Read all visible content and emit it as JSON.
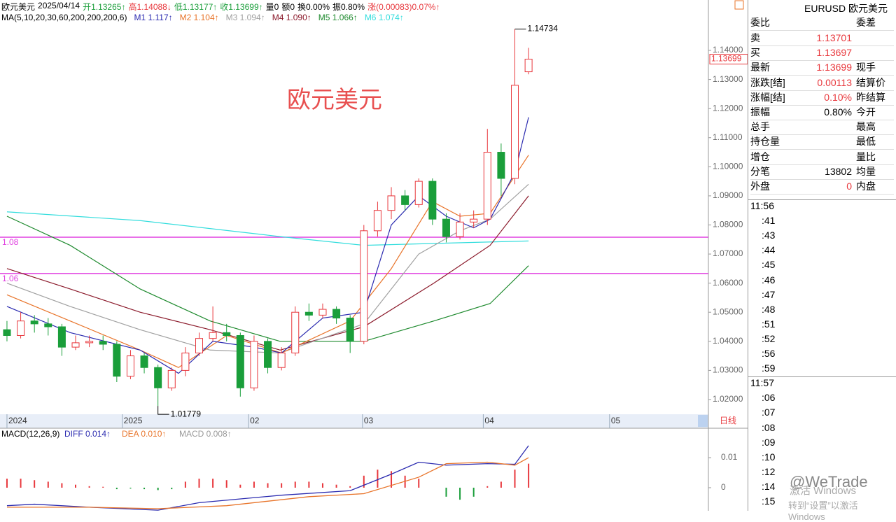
{
  "header": {
    "info": [
      {
        "text": "欧元美元",
        "color": "#000000"
      },
      {
        "text": "2025/04/14",
        "color": "#000000"
      },
      {
        "text": "开1.13265↑",
        "color": "#1a9e3a"
      },
      {
        "text": "高1.14088↓",
        "color": "#e8383d"
      },
      {
        "text": "低1.13177↑",
        "color": "#1a9e3a"
      },
      {
        "text": "收1.13699↑",
        "color": "#1a9e3a"
      },
      {
        "text": "量0",
        "color": "#000000"
      },
      {
        "text": "额0",
        "color": "#000000"
      },
      {
        "text": "换0.00%",
        "color": "#000000"
      },
      {
        "text": "振0.80%",
        "color": "#000000"
      },
      {
        "text": "涨(0.00083)0.07%↑",
        "color": "#e8383d"
      }
    ],
    "ma_label": "MA(5,10,20,30,60,200,200,200,6)",
    "ma_legend": [
      {
        "text": "M1 1.117↑",
        "color": "#2b2bb0"
      },
      {
        "text": "M2 1.104↑",
        "color": "#e8742a"
      },
      {
        "text": "M3 1.094↑",
        "color": "#a0a0a0"
      },
      {
        "text": "M4 1.090↑",
        "color": "#8b1a2b"
      },
      {
        "text": "M5 1.066↑",
        "color": "#1e8a2e"
      },
      {
        "text": "M6 1.074↑",
        "color": "#33dddd"
      }
    ]
  },
  "chart_data": [
    {
      "type": "candlestick",
      "title": "欧元美元",
      "up_color": "#e8383d",
      "down_color": "#1a9e3a",
      "period_label": "日线",
      "candles": [
        [
          1.044,
          1.047,
          1.04,
          1.042
        ],
        [
          1.042,
          1.05,
          1.041,
          1.047
        ],
        [
          1.047,
          1.049,
          1.043,
          1.046
        ],
        [
          1.046,
          1.048,
          1.042,
          1.045
        ],
        [
          1.045,
          1.046,
          1.035,
          1.038
        ],
        [
          1.038,
          1.042,
          1.037,
          1.0395
        ],
        [
          1.0395,
          1.042,
          1.038,
          1.04
        ],
        [
          1.04,
          1.042,
          1.037,
          1.039
        ],
        [
          1.039,
          1.04,
          1.026,
          1.028
        ],
        [
          1.028,
          1.037,
          1.027,
          1.035
        ],
        [
          1.035,
          1.036,
          1.029,
          1.031
        ],
        [
          1.031,
          1.032,
          1.01779,
          1.024
        ],
        [
          1.024,
          1.031,
          1.023,
          1.03
        ],
        [
          1.03,
          1.038,
          1.028,
          1.036
        ],
        [
          1.036,
          1.043,
          1.035,
          1.041
        ],
        [
          1.041,
          1.052,
          1.04,
          1.043
        ],
        [
          1.043,
          1.046,
          1.04,
          1.042
        ],
        [
          1.042,
          1.043,
          1.021,
          1.024
        ],
        [
          1.024,
          1.042,
          1.023,
          1.04
        ],
        [
          1.04,
          1.041,
          1.029,
          1.031
        ],
        [
          1.031,
          1.038,
          1.03,
          1.036
        ],
        [
          1.036,
          1.052,
          1.035,
          1.05
        ],
        [
          1.05,
          1.053,
          1.047,
          1.049
        ],
        [
          1.049,
          1.053,
          1.048,
          1.051
        ],
        [
          1.051,
          1.052,
          1.046,
          1.048
        ],
        [
          1.048,
          1.049,
          1.036,
          1.04
        ],
        [
          1.04,
          1.08,
          1.039,
          1.078
        ],
        [
          1.078,
          1.088,
          1.076,
          1.085
        ],
        [
          1.085,
          1.093,
          1.082,
          1.09
        ],
        [
          1.09,
          1.092,
          1.085,
          1.087
        ],
        [
          1.087,
          1.096,
          1.086,
          1.095
        ],
        [
          1.095,
          1.096,
          1.08,
          1.082
        ],
        [
          1.082,
          1.084,
          1.074,
          1.076
        ],
        [
          1.076,
          1.084,
          1.075,
          1.081
        ],
        [
          1.081,
          1.085,
          1.079,
          1.082
        ],
        [
          1.082,
          1.113,
          1.08,
          1.105
        ],
        [
          1.105,
          1.108,
          1.09,
          1.096
        ],
        [
          1.096,
          1.14734,
          1.094,
          1.128
        ],
        [
          1.13265,
          1.14088,
          1.13177,
          1.13699
        ]
      ],
      "ma_lines": [
        {
          "name": "M6",
          "color": "#33dddd",
          "x": [
            0,
            9.7,
            19.9,
            26,
            38
          ],
          "values": [
            1.0845,
            1.0815,
            1.076,
            1.073,
            1.0745
          ]
        },
        {
          "name": "M5",
          "color": "#1e8a2e",
          "x": [
            0,
            4.6,
            9.7,
            14.8,
            19.9,
            26,
            31.1,
            35.2,
            38
          ],
          "values": [
            1.083,
            1.073,
            1.058,
            1.047,
            1.04,
            1.04,
            1.047,
            1.053,
            1.066
          ]
        },
        {
          "name": "M4",
          "color": "#8b1a2b",
          "x": [
            0,
            4.6,
            9.7,
            14.8,
            19.9,
            26,
            31.1,
            35.2,
            38
          ],
          "values": [
            1.065,
            1.058,
            1.05,
            1.044,
            1.037,
            1.045,
            1.06,
            1.073,
            1.09
          ]
        },
        {
          "name": "M3",
          "color": "#a0a0a0",
          "x": [
            0,
            4.6,
            9.7,
            14.8,
            19.9,
            26,
            30,
            33,
            35.2,
            38
          ],
          "values": [
            1.06,
            1.052,
            1.044,
            1.037,
            1.036,
            1.046,
            1.07,
            1.078,
            1.082,
            1.094
          ]
        },
        {
          "name": "M2",
          "color": "#e8742a",
          "x": [
            0,
            4.6,
            9.7,
            12.5,
            16,
            20,
            25,
            28,
            31,
            33,
            35.2,
            38
          ],
          "values": [
            1.056,
            1.047,
            1.037,
            1.031,
            1.042,
            1.036,
            1.047,
            1.065,
            1.088,
            1.083,
            1.084,
            1.104
          ]
        },
        {
          "name": "M1",
          "color": "#2b2bb0",
          "x": [
            0,
            4.6,
            9.7,
            12.5,
            15,
            18,
            20,
            23,
            26,
            28,
            30,
            32,
            34,
            35.2,
            37,
            38
          ],
          "values": [
            1.052,
            1.043,
            1.037,
            1.029,
            1.04,
            1.038,
            1.036,
            1.048,
            1.05,
            1.08,
            1.09,
            1.083,
            1.079,
            1.082,
            1.098,
            1.117
          ]
        }
      ],
      "hlines": [
        {
          "value": 1.0758,
          "label": "1.08",
          "color": "#e040e0"
        },
        {
          "value": 1.0633,
          "label": "1.06",
          "color": "#e040e0"
        }
      ],
      "xlim": [
        -0.1,
        51.1
      ],
      "xticks": [
        {
          "value": 0,
          "label": "2024"
        },
        {
          "value": 8.4,
          "label": "2025"
        },
        {
          "value": 17.6,
          "label": "02"
        },
        {
          "value": 25.9,
          "label": "03"
        },
        {
          "value": 34.7,
          "label": "04"
        },
        {
          "value": 43.9,
          "label": "05"
        }
      ],
      "ylim": [
        1.01494,
        1.1489
      ],
      "yticks": [
        {
          "value": 1.14,
          "label": "1.14000"
        },
        {
          "value": 1.13,
          "label": "1.13000"
        },
        {
          "value": 1.12,
          "label": "1.12000"
        },
        {
          "value": 1.11,
          "label": "1.11000"
        },
        {
          "value": 1.1,
          "label": "1.10000"
        },
        {
          "value": 1.09,
          "label": "1.09000"
        },
        {
          "value": 1.08,
          "label": "1.08000"
        },
        {
          "value": 1.07,
          "label": "1.07000"
        },
        {
          "value": 1.06,
          "label": "1.06000"
        },
        {
          "value": 1.05,
          "label": "1.05000"
        },
        {
          "value": 1.04,
          "label": "1.04000"
        },
        {
          "value": 1.03,
          "label": "1.03000"
        },
        {
          "value": 1.02,
          "label": "1.02000"
        }
      ]
    },
    {
      "type": "macd",
      "title": "MACD(12,26,9)",
      "legend": [
        {
          "text": "DIFF 0.014↑",
          "color": "#2b2bb0"
        },
        {
          "text": "DEA 0.010↑",
          "color": "#e8742a"
        },
        {
          "text": "MACD 0.008↑",
          "color": "#999999"
        }
      ],
      "histogram": [
        0.003,
        0.003,
        0.0025,
        0.002,
        0.0015,
        0.001,
        0.0005,
        0.0003,
        -0.0005,
        -0.0003,
        -0.0005,
        -0.0008,
        -0.0005,
        0.002,
        0.003,
        0.003,
        0.0025,
        0.001,
        0.002,
        0.0015,
        0.0015,
        0.002,
        0.002,
        0.0015,
        0.001,
        0.0005,
        0.004,
        0.006,
        0.0055,
        0.004,
        0.003,
        0,
        -0.003,
        -0.004,
        -0.003,
        0.0005,
        0.002,
        0.006,
        0.008
      ],
      "up_color": "#e8383d",
      "down_color": "#1a9e3a",
      "series": [
        {
          "name": "DIFF",
          "color": "#2b2bb0",
          "x": [
            0,
            2,
            6,
            11,
            14,
            20,
            25,
            28,
            30,
            32,
            35,
            37,
            38
          ],
          "values": [
            -0.006,
            -0.0055,
            -0.0065,
            -0.0075,
            -0.005,
            -0.0025,
            -0.001,
            0.0045,
            0.0085,
            0.0075,
            0.008,
            0.0078,
            0.014
          ]
        },
        {
          "name": "DEA",
          "color": "#e8742a",
          "x": [
            0,
            6,
            11,
            16,
            22,
            26,
            30,
            32,
            35,
            37,
            38
          ],
          "values": [
            -0.0065,
            -0.0065,
            -0.007,
            -0.006,
            -0.003,
            -0.002,
            0.0035,
            0.008,
            0.0085,
            0.0075,
            0.01
          ]
        }
      ],
      "xlim": [
        -0.1,
        51.1
      ],
      "ylim": [
        -0.0077,
        0.0198
      ],
      "yticks": [
        0,
        0.01
      ]
    }
  ],
  "side_panel": {
    "title": "EURUSD 欧元美元",
    "header": [
      "委比",
      "委差"
    ],
    "rows": [
      {
        "label": "卖",
        "value": "1.13701",
        "color": "#e8383d",
        "label2": ""
      },
      {
        "label": "买",
        "value": "1.13697",
        "color": "#e8383d",
        "label2": ""
      },
      {
        "label": "最新",
        "value": "1.13699",
        "color": "#e8383d",
        "label2": "现手"
      },
      {
        "label": "涨跌[结]",
        "value": "0.00113",
        "color": "#e8383d",
        "label2": "结算价"
      },
      {
        "label": "涨幅[结]",
        "value": "0.10%",
        "color": "#e8383d",
        "label2": "昨结算"
      },
      {
        "label": "振幅",
        "value": "0.80%",
        "color": "#000000",
        "label2": "今开"
      },
      {
        "label": "总手",
        "value": "",
        "color": "#000000",
        "label2": "最高"
      },
      {
        "label": "持仓量",
        "value": "",
        "color": "#000000",
        "label2": "最低"
      },
      {
        "label": "增仓",
        "value": "",
        "color": "#000000",
        "label2": "量比"
      },
      {
        "label": "分笔",
        "value": "13802",
        "color": "#000000",
        "label2": "均量"
      },
      {
        "label": "外盘",
        "value": "0",
        "color": "#e8383d",
        "label2": "内盘"
      }
    ],
    "times": [
      {
        "time": "11:56",
        "items": [
          ":41",
          ":43",
          ":44",
          ":45",
          ":46",
          ":47",
          ":48",
          ":51",
          ":52",
          ":56",
          ":59"
        ]
      },
      {
        "time": "11:57",
        "items": [
          ":06",
          ":07",
          ":08",
          ":09",
          ":10",
          ":12",
          ":14",
          ":15"
        ]
      }
    ]
  },
  "overlay": {
    "brand": "@WeTrade",
    "activate": "激活 Windows",
    "activate_hint": "转到“设置”以激活 Windows"
  }
}
